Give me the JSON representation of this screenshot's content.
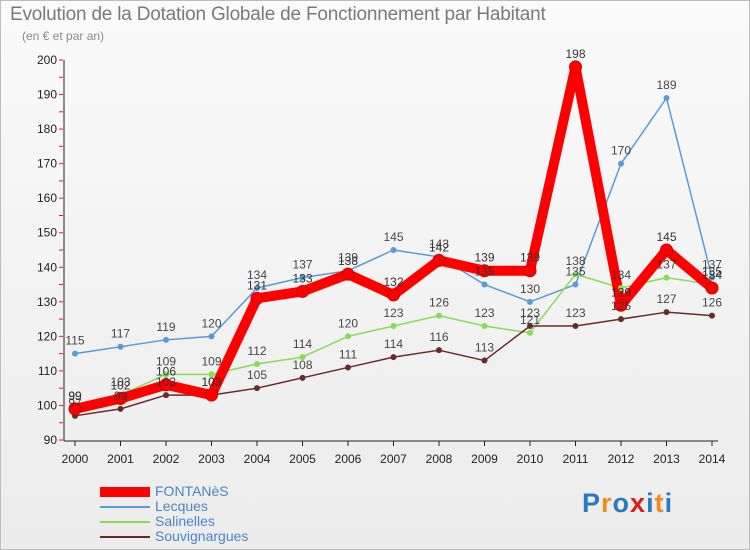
{
  "chart_data": {
    "type": "line",
    "title": "Evolution de la Dotation Globale de Fonctionnement par Habitant",
    "subtitle": "(en € et par an)",
    "xlabel": "",
    "ylabel": "",
    "ylim": [
      90,
      200
    ],
    "yticks": [
      "90",
      "100",
      "110",
      "120",
      "130",
      "140",
      "150",
      "160",
      "170",
      "180",
      "190",
      "200"
    ],
    "categories": [
      "2000",
      "2001",
      "2002",
      "2003",
      "2004",
      "2005",
      "2006",
      "2007",
      "2008",
      "2009",
      "2010",
      "2011",
      "2012",
      "2013",
      "2014"
    ],
    "series": [
      {
        "name": "FONTANèS",
        "color": "#ff0000",
        "values": [
          99,
          102,
          106,
          103,
          131,
          133,
          138,
          132,
          142,
          139,
          139,
          198,
          129,
          145,
          134
        ]
      },
      {
        "name": "Lecques",
        "color": "#5b9bd5",
        "values": [
          115,
          117,
          119,
          120,
          134,
          137,
          139,
          145,
          143,
          135,
          130,
          135,
          170,
          189,
          137
        ]
      },
      {
        "name": "Salinelles",
        "color": "#88dd55",
        "values": [
          99,
          103,
          109,
          109,
          112,
          114,
          120,
          123,
          126,
          123,
          121,
          138,
          134,
          137,
          135
        ]
      },
      {
        "name": "Souvignargues",
        "color": "#6b2a2a",
        "values": [
          97,
          99,
          103,
          103,
          105,
          108,
          111,
          114,
          116,
          113,
          123,
          123,
          125,
          127,
          126
        ]
      }
    ],
    "grid": false,
    "legend": "bottom-left"
  },
  "logo": {
    "text": "Proxiti",
    "letters": [
      "P",
      "r",
      "o",
      "x",
      "i",
      "t",
      "i"
    ],
    "colors": [
      "#2b79c2",
      "#f08a1f",
      "#2b79c2",
      "#e21a1a",
      "#2b79c2",
      "#f08a1f",
      "#2b79c2"
    ]
  }
}
